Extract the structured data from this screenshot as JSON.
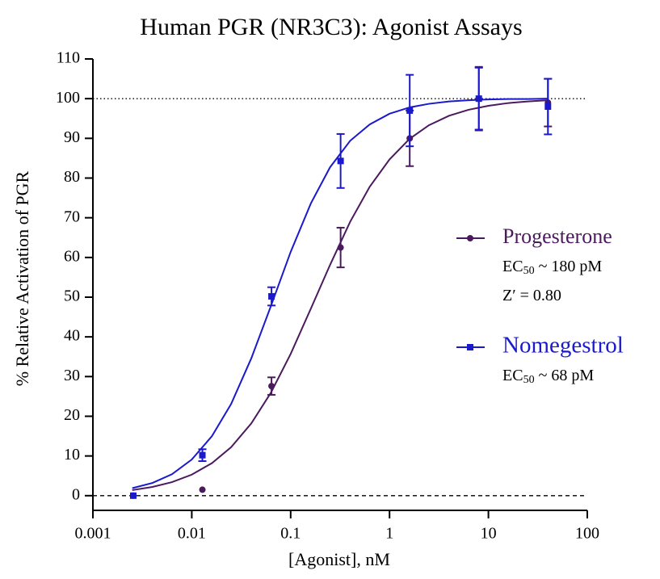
{
  "chart_data": {
    "type": "dose-response",
    "title": "Human PGR (NR3C3): Agonist Assays",
    "x_label": "[Agonist], nM",
    "y_label": "% Relative Activation of PGR",
    "x_scale": "log",
    "xlim": [
      0.001,
      100
    ],
    "xticks": [
      0.001,
      0.01,
      0.1,
      1,
      10,
      100
    ],
    "ylim": [
      -3.7,
      110
    ],
    "yticks": [
      0,
      10,
      20,
      30,
      40,
      50,
      60,
      70,
      80,
      90,
      100,
      110
    ],
    "reference_lines": [
      {
        "value": 100,
        "style": "dotted"
      },
      {
        "value": 0,
        "style": "dashed"
      }
    ],
    "series": [
      {
        "name": "Progesterone",
        "color": "#4b1a5e",
        "marker": "circle",
        "x": [
          0.00256,
          0.0128,
          0.064,
          0.32,
          1.6,
          8,
          40
        ],
        "values": [
          0,
          1.5,
          27.6,
          62.5,
          90,
          100,
          99
        ],
        "errors": [
          null,
          null,
          2.2,
          5,
          7,
          8,
          6
        ],
        "annotation": [
          {
            "prefix": "EC",
            "sub": "50",
            "suffix": " ~ 180 pM"
          },
          {
            "prefix": "Z′ = 0.80"
          }
        ],
        "fit": {
          "x": [
            0.0025,
            0.004,
            0.0063,
            0.01,
            0.016,
            0.025,
            0.04,
            0.063,
            0.1,
            0.16,
            0.25,
            0.4,
            0.63,
            1,
            1.6,
            2.5,
            4,
            6.3,
            10,
            16,
            25,
            40
          ],
          "values": [
            1.4,
            2.2,
            3.4,
            5.3,
            8.2,
            12.2,
            18.2,
            25.9,
            35.7,
            47.1,
            58.1,
            69.0,
            77.8,
            84.7,
            89.9,
            93.3,
            95.7,
            97.2,
            98.2,
            98.9,
            99.3,
            99.6
          ]
        }
      },
      {
        "name": "Nomegestrol",
        "color": "#1a1acc",
        "marker": "square",
        "x": [
          0.00256,
          0.0128,
          0.064,
          0.32,
          1.6,
          8,
          40
        ],
        "values": [
          0,
          10.2,
          50.2,
          84.3,
          97,
          100,
          98
        ],
        "errors": [
          null,
          1.5,
          2.3,
          6.8,
          9,
          7.8,
          7
        ],
        "annotation": [
          {
            "prefix": "EC",
            "sub": "50",
            "suffix": " ~ 68 pM"
          }
        ],
        "fit": {
          "x": [
            0.0025,
            0.004,
            0.0063,
            0.01,
            0.016,
            0.025,
            0.04,
            0.063,
            0.1,
            0.16,
            0.25,
            0.4,
            0.63,
            1,
            1.6,
            2.5,
            4,
            6.3,
            10,
            16,
            25,
            40
          ],
          "values": [
            1.9,
            3.2,
            5.4,
            9.1,
            15.0,
            23.1,
            34.6,
            47.7,
            61.4,
            73.6,
            82.7,
            89.4,
            93.5,
            96.2,
            97.8,
            98.7,
            99.3,
            99.6,
            99.8,
            99.9,
            99.9,
            100.0
          ]
        }
      }
    ]
  }
}
